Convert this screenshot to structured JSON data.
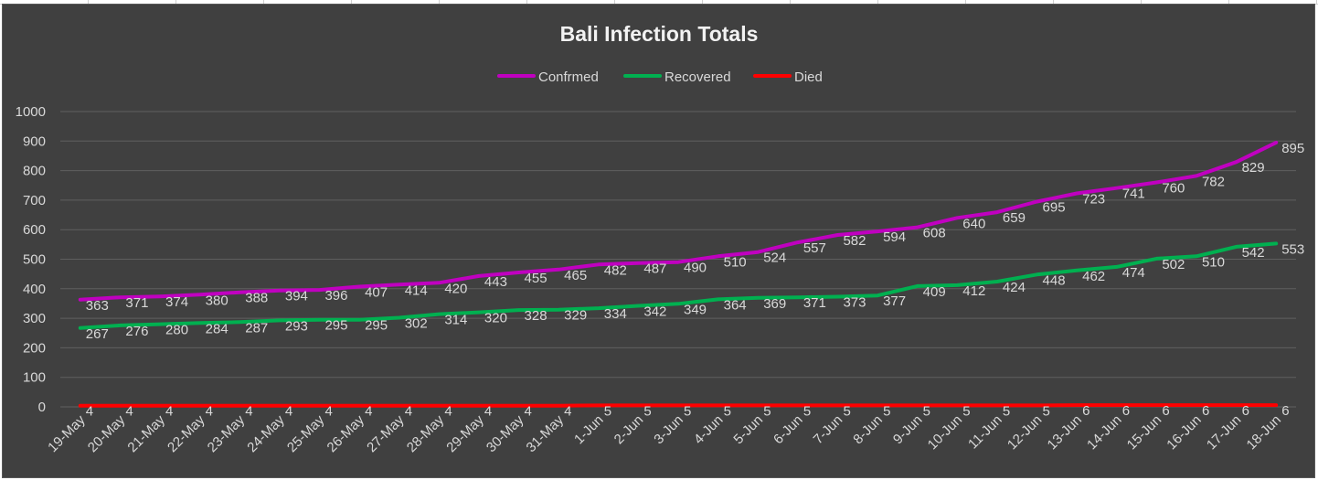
{
  "chart_data": {
    "type": "line",
    "title": "Bali Infection Totals",
    "xlabel": "",
    "ylabel": "",
    "ylim": [
      0,
      1000
    ],
    "yticks": [
      0,
      100,
      200,
      300,
      400,
      500,
      600,
      700,
      800,
      900,
      1000
    ],
    "grid": true,
    "legend": "top",
    "categories": [
      "19-May",
      "20-May",
      "21-May",
      "22-May",
      "23-May",
      "24-May",
      "25-May",
      "26-May",
      "27-May",
      "28-May",
      "29-May",
      "30-May",
      "31-May",
      "1-Jun",
      "2-Jun",
      "3-Jun",
      "4-Jun",
      "5-Jun",
      "6-Jun",
      "7-Jun",
      "8-Jun",
      "9-Jun",
      "10-Jun",
      "11-Jun",
      "12-Jun",
      "13-Jun",
      "14-Jun",
      "15-Jun",
      "16-Jun",
      "17-Jun",
      "18-Jun"
    ],
    "series": [
      {
        "name": "Confrmed",
        "color": "#c000c0",
        "values": [
          363,
          371,
          374,
          380,
          388,
          394,
          396,
          407,
          414,
          420,
          443,
          455,
          465,
          482,
          487,
          490,
          510,
          524,
          557,
          582,
          594,
          608,
          640,
          659,
          695,
          723,
          741,
          760,
          782,
          829,
          895
        ]
      },
      {
        "name": "Recovered",
        "color": "#00b050",
        "values": [
          267,
          276,
          280,
          284,
          287,
          293,
          295,
          295,
          302,
          314,
          320,
          328,
          329,
          334,
          342,
          349,
          364,
          369,
          371,
          373,
          377,
          409,
          412,
          424,
          448,
          462,
          474,
          502,
          510,
          542,
          553
        ]
      },
      {
        "name": "Died",
        "color": "#ff0000",
        "values": [
          4,
          4,
          4,
          4,
          4,
          4,
          4,
          4,
          4,
          4,
          4,
          4,
          4,
          5,
          5,
          5,
          5,
          5,
          5,
          5,
          5,
          5,
          5,
          5,
          5,
          6,
          6,
          6,
          6,
          6,
          6
        ]
      }
    ]
  }
}
